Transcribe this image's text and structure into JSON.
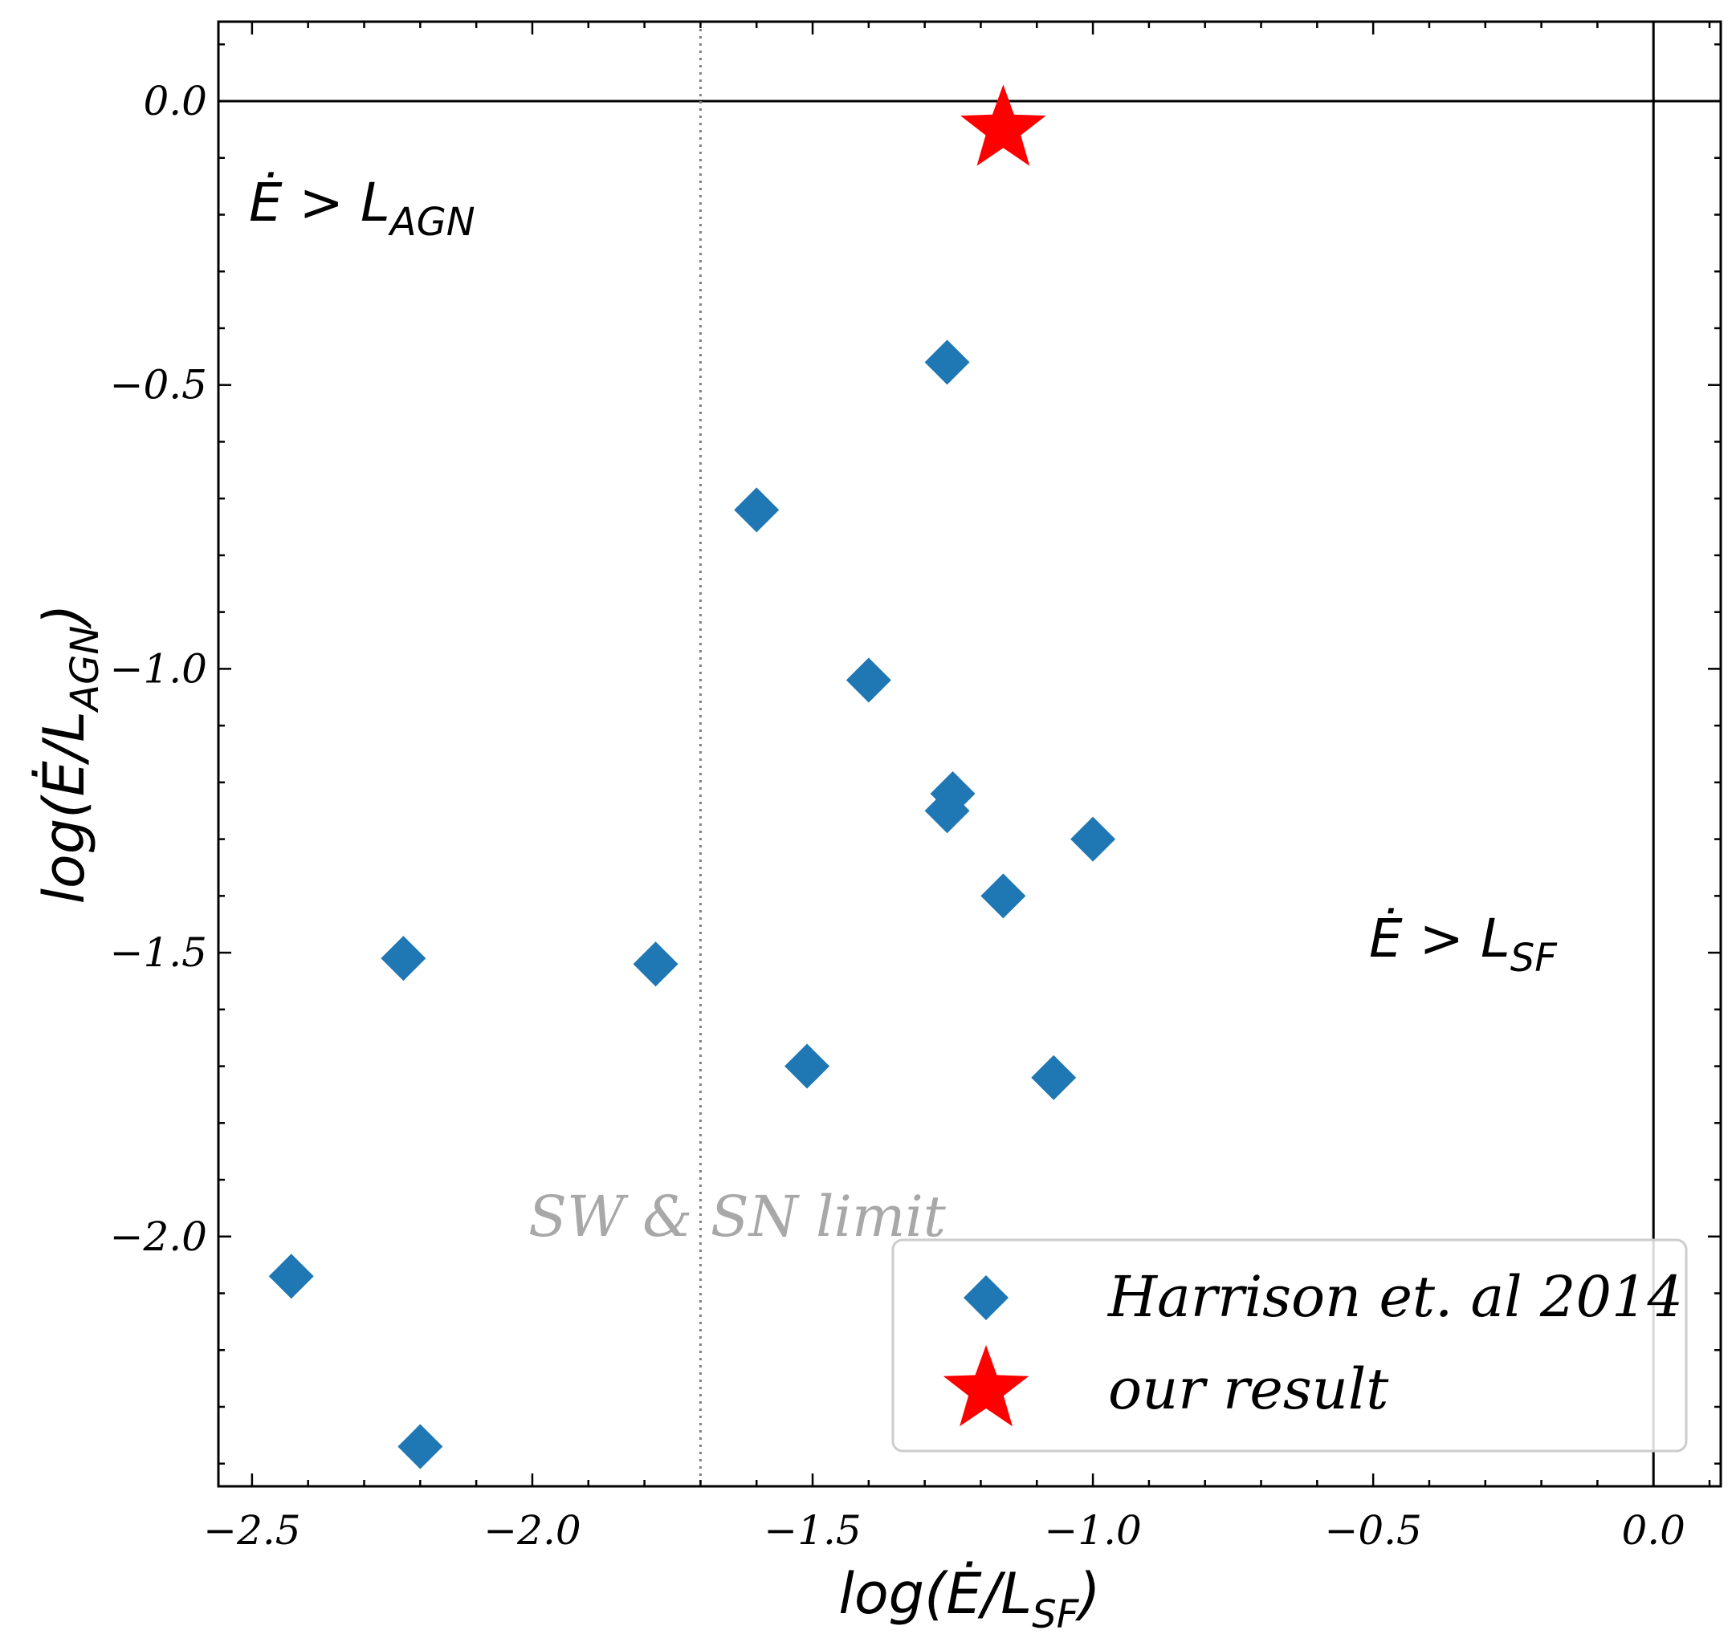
{
  "chart_data": {
    "type": "scatter",
    "xlabel": "log(Ė/L_SF)",
    "ylabel": "log(Ė/L_AGN)",
    "xlim": [
      -2.56,
      0.12
    ],
    "ylim": [
      -2.44,
      0.14
    ],
    "xticks": [
      -2.5,
      -2.0,
      -1.5,
      -1.0,
      -0.5,
      0.0
    ],
    "xtick_labels": [
      "−2.5",
      "−2.0",
      "−1.5",
      "−1.0",
      "−0.5",
      "0.0"
    ],
    "yticks": [
      0.0,
      -0.5,
      -1.0,
      -1.5,
      -2.0
    ],
    "ytick_labels": [
      "0.0",
      "−0.5",
      "−1.0",
      "−1.5",
      "−2.0"
    ],
    "grid": false,
    "legend_position": "lower-right",
    "reference_lines": {
      "horizontal_y": 0.0,
      "vertical_x": 0.0,
      "sw_sn_limit_x": -1.7
    },
    "annotations": {
      "agn_region": "Ė > L_AGN",
      "sf_region": "Ė > L_SF",
      "sw_sn_limit": "SW & SN limit"
    },
    "series": [
      {
        "name": "Harrison et. al 2014",
        "marker": "diamond",
        "color": "#1f77b4",
        "points": [
          {
            "x": -1.26,
            "y": -0.46
          },
          {
            "x": -1.6,
            "y": -0.72
          },
          {
            "x": -1.4,
            "y": -1.02
          },
          {
            "x": -1.25,
            "y": -1.22
          },
          {
            "x": -1.26,
            "y": -1.25
          },
          {
            "x": -1.0,
            "y": -1.3
          },
          {
            "x": -1.16,
            "y": -1.4
          },
          {
            "x": -2.23,
            "y": -1.51
          },
          {
            "x": -1.78,
            "y": -1.52
          },
          {
            "x": -1.51,
            "y": -1.7
          },
          {
            "x": -1.07,
            "y": -1.72
          },
          {
            "x": -2.43,
            "y": -2.07
          },
          {
            "x": -2.2,
            "y": -2.37
          }
        ]
      },
      {
        "name": "our result",
        "marker": "star",
        "color": "#ff0000",
        "points": [
          {
            "x": -1.16,
            "y": -0.05
          }
        ]
      }
    ]
  }
}
